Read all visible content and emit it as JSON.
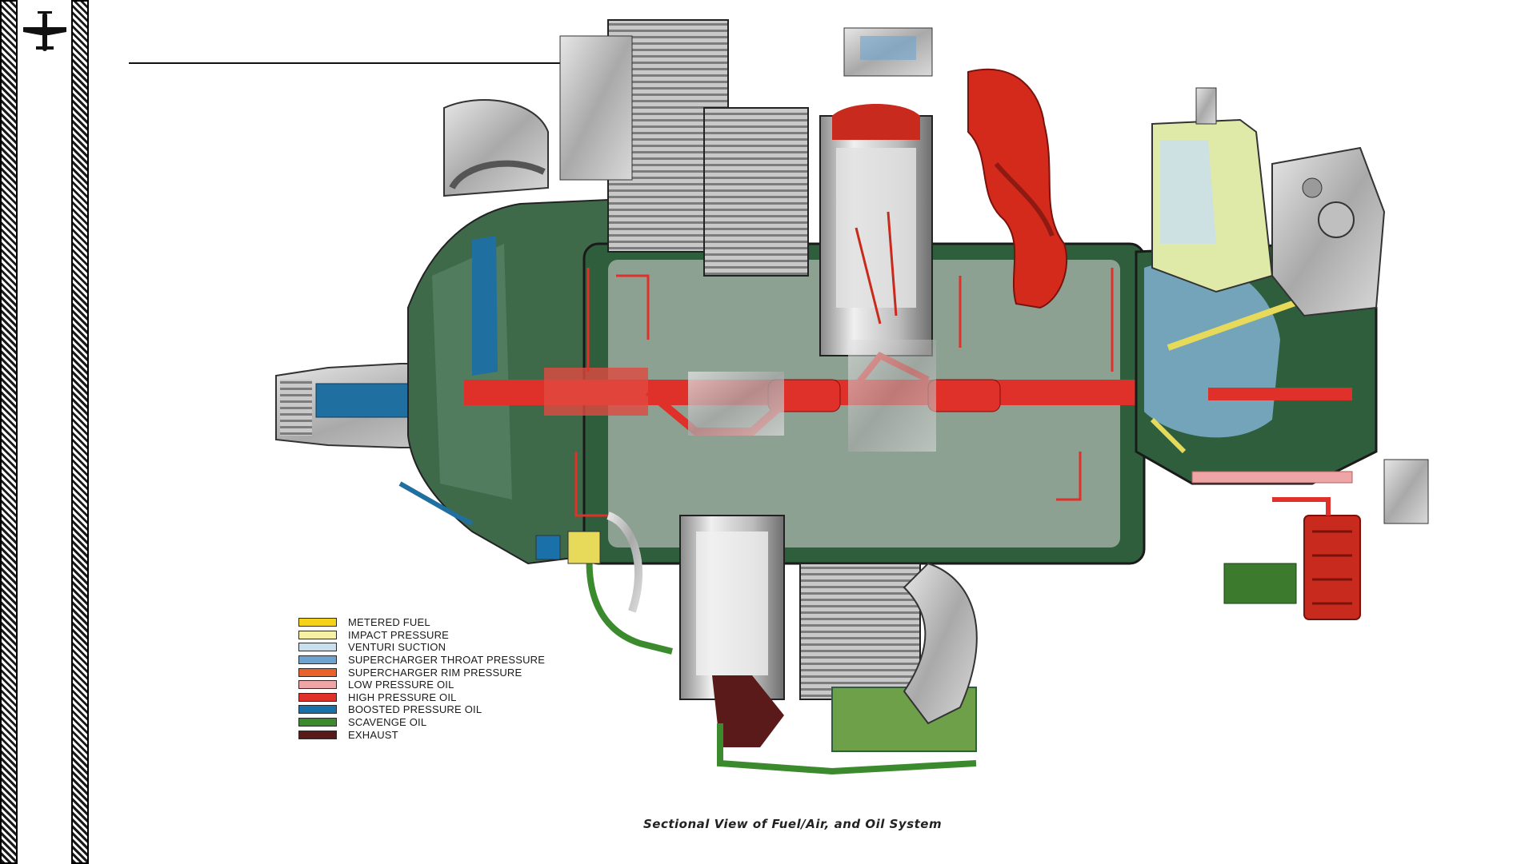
{
  "sidebar": {
    "icon": "airplane-icon"
  },
  "caption": "Sectional View of Fuel/Air, and Oil System",
  "legend": [
    {
      "label": "METERED FUEL",
      "color": "#f4d21a"
    },
    {
      "label": "IMPACT PRESSURE",
      "color": "#f7f1a6"
    },
    {
      "label": "VENTURI SUCTION",
      "color": "#c8dff0"
    },
    {
      "label": "SUPERCHARGER THROAT PRESSURE",
      "color": "#6fa3cf"
    },
    {
      "label": "SUPERCHARGER RIM PRESSURE",
      "color": "#e8622a"
    },
    {
      "label": "LOW PRESSURE OIL",
      "color": "#efa5a5"
    },
    {
      "label": "HIGH PRESSURE OIL",
      "color": "#e0302a"
    },
    {
      "label": "BOOSTED PRESSURE OIL",
      "color": "#1a70a8"
    },
    {
      "label": "SCAVENGE OIL",
      "color": "#3c8a2e"
    },
    {
      "label": "EXHAUST",
      "color": "#5a1a1a"
    }
  ]
}
